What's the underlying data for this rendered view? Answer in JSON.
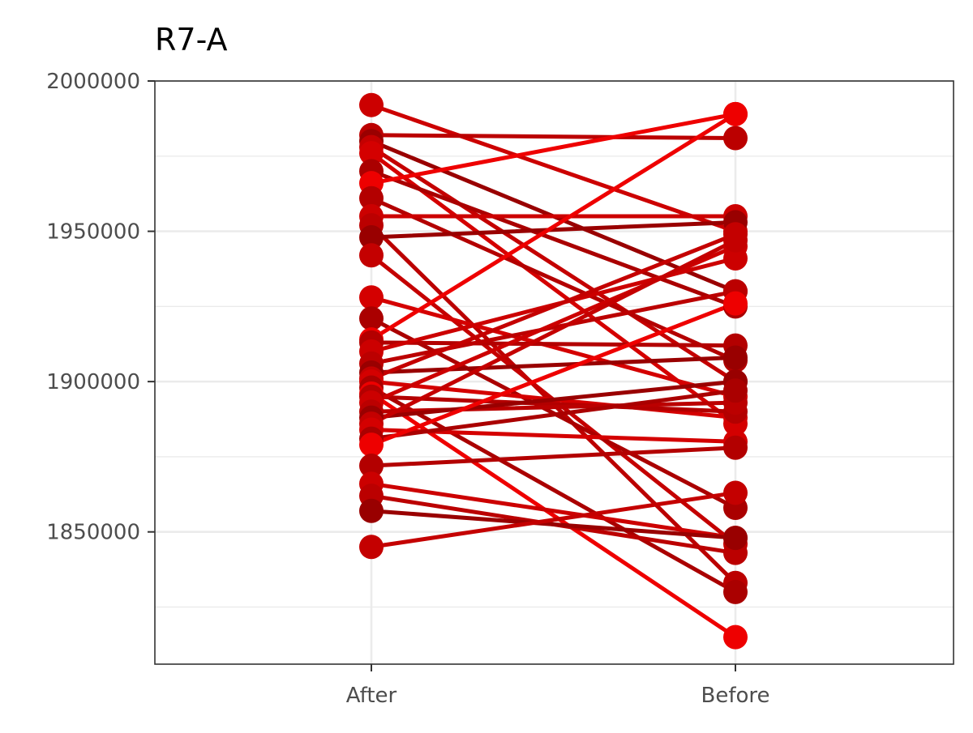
{
  "chart_data": {
    "type": "line",
    "title": "R7-A",
    "xlabel": "",
    "ylabel": "",
    "categories": [
      "After",
      "Before"
    ],
    "yticks": [
      1850000,
      1900000,
      1950000,
      2000000
    ],
    "ylim": [
      1806000,
      2000000
    ],
    "grid": true,
    "legend": "none",
    "colors": {
      "series_base": "#cc0000",
      "series_dark": "#990000",
      "series_bright": "#ee0000",
      "grid": "#ebebeb",
      "panel_border": "#333333",
      "axis_text": "#4d4d4d"
    },
    "series": [
      {
        "values": [
          1992000,
          1950000
        ]
      },
      {
        "values": [
          1982000,
          1981000
        ]
      },
      {
        "values": [
          1980000,
          1930000
        ]
      },
      {
        "values": [
          1978000,
          1900000
        ]
      },
      {
        "values": [
          1976000,
          1886000
        ]
      },
      {
        "values": [
          1970000,
          1925000
        ]
      },
      {
        "values": [
          1966000,
          1989000
        ]
      },
      {
        "values": [
          1961000,
          1907000
        ]
      },
      {
        "values": [
          1955000,
          1955000
        ]
      },
      {
        "values": [
          1952000,
          1833000
        ]
      },
      {
        "values": [
          1948000,
          1953000
        ]
      },
      {
        "values": [
          1942000,
          1846000
        ]
      },
      {
        "values": [
          1928000,
          1895000
        ]
      },
      {
        "values": [
          1921000,
          1858000
        ]
      },
      {
        "values": [
          1914000,
          1989000
        ]
      },
      {
        "values": [
          1913000,
          1912000
        ]
      },
      {
        "values": [
          1910000,
          1941000
        ]
      },
      {
        "values": [
          1906000,
          1930000
        ]
      },
      {
        "values": [
          1903000,
          1908000
        ]
      },
      {
        "values": [
          1901000,
          1949000
        ]
      },
      {
        "values": [
          1900000,
          1888000
        ]
      },
      {
        "values": [
          1898000,
          1830000
        ]
      },
      {
        "values": [
          1896000,
          1815000
        ]
      },
      {
        "values": [
          1895000,
          1890000
        ]
      },
      {
        "values": [
          1893000,
          1945000
        ]
      },
      {
        "values": [
          1890000,
          1893000
        ]
      },
      {
        "values": [
          1888000,
          1900000
        ]
      },
      {
        "values": [
          1886000,
          1947000
        ]
      },
      {
        "values": [
          1884000,
          1880000
        ]
      },
      {
        "values": [
          1881000,
          1897000
        ]
      },
      {
        "values": [
          1879000,
          1926000
        ]
      },
      {
        "values": [
          1872000,
          1878000
        ]
      },
      {
        "values": [
          1866000,
          1848000
        ]
      },
      {
        "values": [
          1862000,
          1843000
        ]
      },
      {
        "values": [
          1857000,
          1848000
        ]
      },
      {
        "values": [
          1845000,
          1863000
        ]
      }
    ]
  }
}
